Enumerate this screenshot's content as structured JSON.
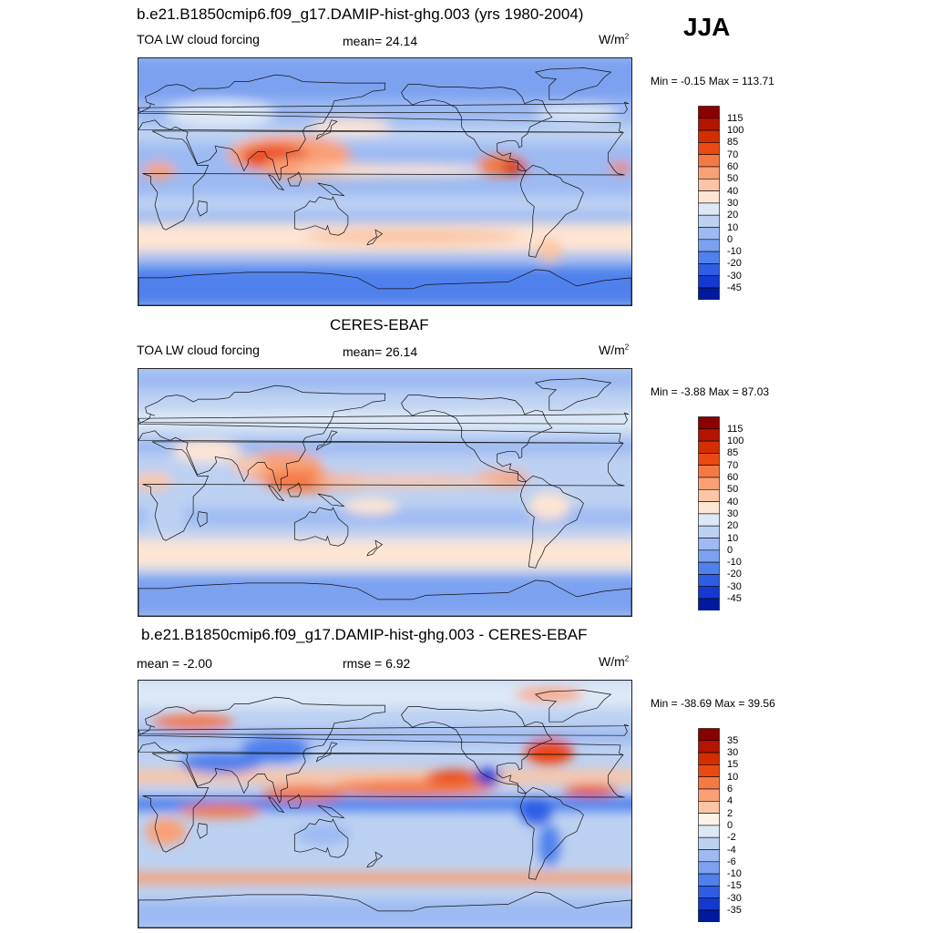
{
  "season": "JJA",
  "panels": [
    {
      "title": "b.e21.B1850cmip6.f09_g17.DAMIP-hist-ghg.003 (yrs 1980-2004)",
      "left": "TOA LW cloud forcing",
      "mid": "mean=  24.14",
      "units": "W/m",
      "units_sup": "2",
      "minmax": "Min =  -0.15 Max = 113.71"
    },
    {
      "title": "CERES-EBAF",
      "left": "TOA LW cloud forcing",
      "mid": "mean=  26.14",
      "units": "W/m",
      "units_sup": "2",
      "minmax": "Min =  -3.88 Max =  87.03"
    },
    {
      "title": "b.e21.B1850cmip6.f09_g17.DAMIP-hist-ghg.003 - CERES-EBAF",
      "left": "mean =  -2.00",
      "mid": "rmse =   6.92",
      "units": "W/m",
      "units_sup": "2",
      "minmax": "Min = -38.69 Max =  39.56"
    }
  ],
  "chart_data": [
    {
      "type": "heatmap",
      "title": "b.e21.B1850cmip6.f09_g17.DAMIP-hist-ghg.003 (yrs 1980-2004)",
      "variable": "TOA LW cloud forcing",
      "units": "W/m2",
      "mean": 24.14,
      "min": -0.15,
      "max": 113.71,
      "colorbar_levels": [
        "115",
        "100",
        "85",
        "70",
        "60",
        "50",
        "40",
        "30",
        "20",
        "10",
        "0",
        "-10",
        "-20",
        "-30",
        "-45"
      ],
      "colorbar_colors": [
        "#8b0000",
        "#b31500",
        "#d42d00",
        "#ea4a12",
        "#f47a44",
        "#f9a077",
        "#fcc6a6",
        "#fee5d4",
        "#dde8f6",
        "#bdd1f2",
        "#9dbaf2",
        "#7ba1f0",
        "#5080ec",
        "#2e5de4",
        "#1438d2",
        "#001a9e"
      ]
    },
    {
      "type": "heatmap",
      "title": "CERES-EBAF",
      "variable": "TOA LW cloud forcing",
      "units": "W/m2",
      "mean": 26.14,
      "min": -3.88,
      "max": 87.03,
      "colorbar_levels": [
        "115",
        "100",
        "85",
        "70",
        "60",
        "50",
        "40",
        "30",
        "20",
        "10",
        "0",
        "-10",
        "-20",
        "-30",
        "-45"
      ],
      "colorbar_colors": [
        "#8b0000",
        "#b31500",
        "#d42d00",
        "#ea4a12",
        "#f47a44",
        "#f9a077",
        "#fcc6a6",
        "#fee5d4",
        "#dde8f6",
        "#bdd1f2",
        "#9dbaf2",
        "#7ba1f0",
        "#5080ec",
        "#2e5de4",
        "#1438d2",
        "#001a9e"
      ]
    },
    {
      "type": "heatmap",
      "title": "b.e21.B1850cmip6.f09_g17.DAMIP-hist-ghg.003 - CERES-EBAF",
      "units": "W/m2",
      "mean": -2.0,
      "rmse": 6.92,
      "min": -38.69,
      "max": 39.56,
      "colorbar_levels": [
        "35",
        "30",
        "15",
        "10",
        "6",
        "4",
        "2",
        "0",
        "-2",
        "-4",
        "-6",
        "-10",
        "-15",
        "-30",
        "-35"
      ],
      "colorbar_colors": [
        "#8b0000",
        "#b31500",
        "#d42d00",
        "#ea4a12",
        "#f47a44",
        "#f9a077",
        "#fcc6a6",
        "#fff2e8",
        "#dde8f6",
        "#bdd1f2",
        "#9dbaf2",
        "#7ba1f0",
        "#5080ec",
        "#2e5de4",
        "#1438d2",
        "#001a9e"
      ]
    }
  ]
}
